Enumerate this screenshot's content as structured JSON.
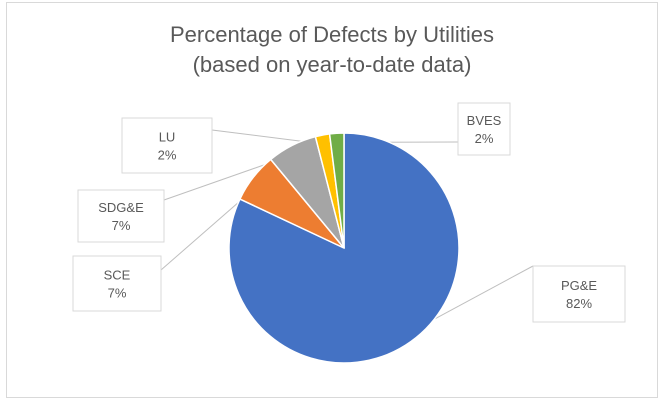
{
  "chart_data": {
    "type": "pie",
    "title": "Percentage of Defects by Utilities",
    "subtitle": "(based on year-to-date data)",
    "slices": [
      {
        "label": "PG&E",
        "value": 82,
        "display": "82%",
        "color": "#4472c4"
      },
      {
        "label": "SCE",
        "value": 7,
        "display": "7%",
        "color": "#ed7d31"
      },
      {
        "label": "SDG&E",
        "value": 7,
        "display": "7%",
        "color": "#a5a5a5"
      },
      {
        "label": "LU",
        "value": 2,
        "display": "2%",
        "color": "#ffc000"
      },
      {
        "label": "BVES",
        "value": 2,
        "display": "2%",
        "color": "#70ad47"
      }
    ],
    "legend": "none"
  }
}
